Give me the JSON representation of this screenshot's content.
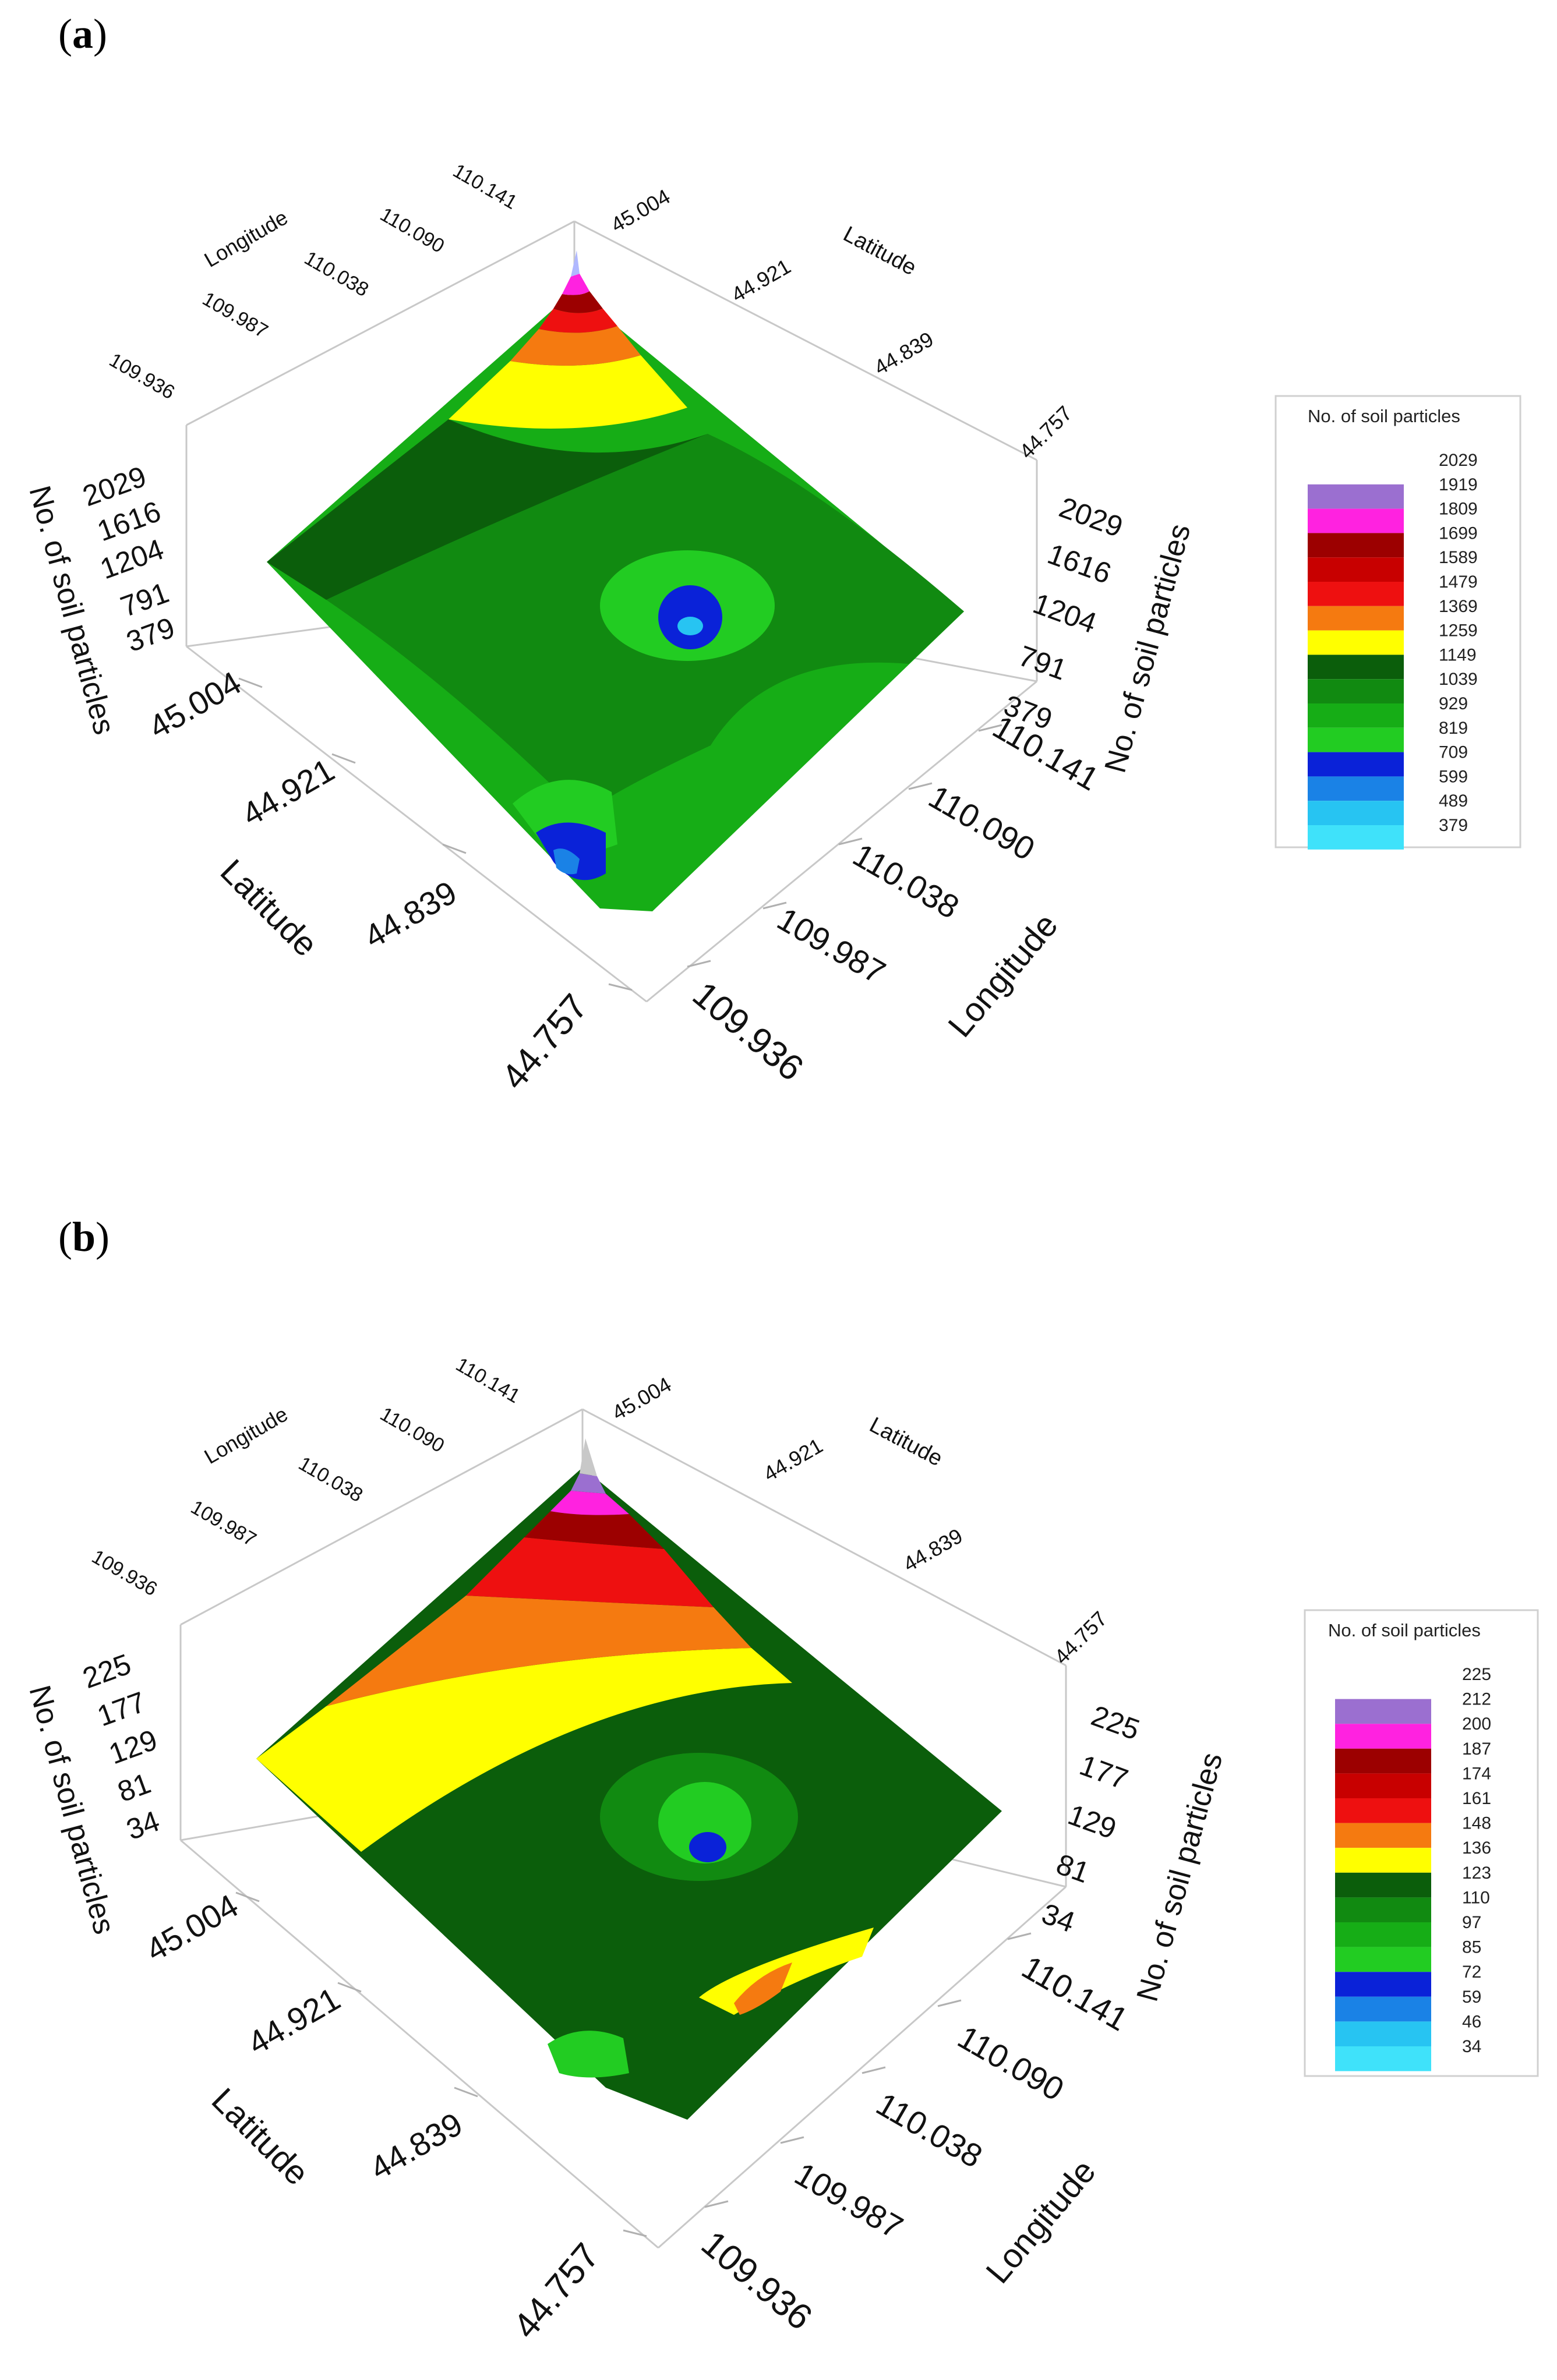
{
  "chart_data": [
    {
      "type": "surface3d",
      "panel_label": "a",
      "title": "",
      "xlabel": "Longitude",
      "ylabel": "Latitude",
      "zlabel": "No. of soil particles",
      "x_ticks": [
        "109.936",
        "109.987",
        "110.038",
        "110.090",
        "110.141"
      ],
      "y_ticks": [
        "44.757",
        "44.839",
        "44.921",
        "45.004"
      ],
      "z_ticks": [
        "379",
        "791",
        "1204",
        "1616",
        "2029"
      ],
      "xlim": [
        109.936,
        110.141
      ],
      "ylim": [
        44.757,
        45.004
      ],
      "zlim": [
        379,
        2029
      ],
      "legend": {
        "title": "No. of soil particles",
        "levels": [
          "2029",
          "1919",
          "1809",
          "1699",
          "1589",
          "1479",
          "1369",
          "1259",
          "1149",
          "1039",
          "929",
          "819",
          "709",
          "599",
          "489",
          "379"
        ],
        "colors": [
          "#9b6fd0",
          "#ff22e0",
          "#9c0000",
          "#c80000",
          "#ee1010",
          "#f57a10",
          "#ffff00",
          "#0b5e0b",
          "#118a11",
          "#16ad16",
          "#22cc22",
          "#0a22d8",
          "#1a82e6",
          "#27c4f2",
          "#3fe2fa"
        ]
      }
    },
    {
      "type": "surface3d",
      "panel_label": "b",
      "title": "",
      "xlabel": "Longitude",
      "ylabel": "Latitude",
      "zlabel": "No. of soil particles",
      "x_ticks": [
        "109.936",
        "109.987",
        "110.038",
        "110.090",
        "110.141"
      ],
      "y_ticks": [
        "44.757",
        "44.839",
        "44.921",
        "45.004"
      ],
      "z_ticks": [
        "34",
        "81",
        "129",
        "177",
        "225"
      ],
      "xlim": [
        109.936,
        110.141
      ],
      "ylim": [
        44.757,
        45.004
      ],
      "zlim": [
        34,
        225
      ],
      "legend": {
        "title": "No. of soil particles",
        "levels": [
          "225",
          "212",
          "200",
          "187",
          "174",
          "161",
          "148",
          "136",
          "123",
          "110",
          "97",
          "85",
          "72",
          "59",
          "46",
          "34"
        ],
        "colors": [
          "#9b6fd0",
          "#ff22e0",
          "#9c0000",
          "#c80000",
          "#ee1010",
          "#f57a10",
          "#ffff00",
          "#0b5e0b",
          "#118a11",
          "#16ad16",
          "#22cc22",
          "#0a22d8",
          "#1a82e6",
          "#27c4f2",
          "#3fe2fa"
        ]
      }
    }
  ]
}
